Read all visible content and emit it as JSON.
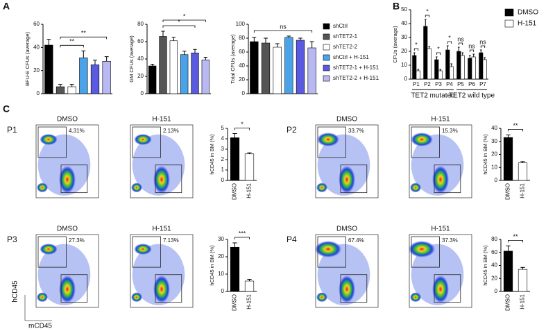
{
  "panels": [
    "A",
    "B",
    "C"
  ],
  "legend_a": [
    {
      "name": "shCtrl",
      "color": "#000000"
    },
    {
      "name": "shTET2-1",
      "color": "#555555"
    },
    {
      "name": "shTET2-2",
      "color": "#ffffff"
    },
    {
      "name": "shCtrl + H-151",
      "color": "#4aa3e8"
    },
    {
      "name": "shTET2-1 + H-151",
      "color": "#5a5ae0"
    },
    {
      "name": "shTET2-2 + H-151",
      "color": "#b8b8f2"
    }
  ],
  "chart_data": [
    {
      "type": "bar",
      "ylabel": "BFU-E CFUs (average)",
      "values": [
        42,
        6,
        6,
        31,
        25,
        28
      ],
      "errors": [
        5,
        2,
        2,
        6,
        4,
        4
      ],
      "colors": [
        "#000000",
        "#555555",
        "#ffffff",
        "#4aa3e8",
        "#5a5ae0",
        "#b8b8f2"
      ],
      "ylim": [
        0,
        60
      ],
      "yticks": [
        0,
        20,
        40,
        60
      ],
      "annotations": [
        {
          "text": "**",
          "between": [
            1,
            3
          ]
        },
        {
          "text": "**",
          "between": [
            1,
            5
          ]
        }
      ]
    },
    {
      "type": "bar",
      "ylabel": "GM CFUs (average)",
      "values": [
        32,
        66,
        61,
        45,
        47,
        39
      ],
      "errors": [
        2,
        6,
        4,
        4,
        4,
        3
      ],
      "colors": [
        "#000000",
        "#555555",
        "#ffffff",
        "#4aa3e8",
        "#5a5ae0",
        "#b8b8f2"
      ],
      "ylim": [
        0,
        80
      ],
      "yticks": [
        0,
        20,
        40,
        60,
        80
      ],
      "annotations": [
        {
          "text": "*",
          "between": [
            1,
            4
          ]
        },
        {
          "text": "*",
          "between": [
            1,
            5
          ]
        }
      ]
    },
    {
      "type": "bar",
      "ylabel": "Total CFUs (average)",
      "values": [
        75,
        73,
        67,
        81,
        77,
        66
      ],
      "errors": [
        6,
        7,
        5,
        2,
        3,
        9
      ],
      "colors": [
        "#000000",
        "#555555",
        "#ffffff",
        "#4aa3e8",
        "#5a5ae0",
        "#b8b8f2"
      ],
      "ylim": [
        0,
        100
      ],
      "yticks": [
        0,
        20,
        40,
        60,
        80,
        100
      ],
      "annotations": [
        {
          "text": "ns",
          "between": [
            0,
            5
          ]
        }
      ]
    },
    {
      "type": "grouped_bar",
      "ylabel": "CFUs (average)",
      "categories": [
        "P1",
        "P2",
        "P3",
        "P4",
        "P5",
        "P6",
        "P7"
      ],
      "series": [
        {
          "name": "DMSO",
          "color": "#000000",
          "values": [
            17,
            38,
            14,
            21,
            20,
            15,
            19
          ],
          "errors": [
            2,
            5,
            2,
            3,
            3,
            2,
            2
          ]
        },
        {
          "name": "H-151",
          "color": "#ffffff",
          "values": [
            6,
            22,
            6,
            9,
            17,
            16,
            14
          ],
          "errors": [
            1,
            1.5,
            1,
            2,
            2,
            2,
            1.5
          ]
        }
      ],
      "ylim": [
        0,
        50
      ],
      "yticks": [
        0,
        10,
        20,
        30,
        40,
        50
      ],
      "annotations": [
        "*",
        "*",
        "*",
        "*",
        "ns",
        "ns",
        "ns"
      ],
      "group_labels": [
        "TET2 mutated",
        "TET2 wild type"
      ]
    },
    {
      "type": "bar",
      "ylabel": "hCD45 in BM (%)",
      "categories": [
        "DMSO",
        "H-151"
      ],
      "values": [
        4.1,
        2.55
      ],
      "errors": [
        0.4,
        0.1
      ],
      "colors": [
        "#000000",
        "#ffffff"
      ],
      "ylim": [
        0,
        5
      ],
      "yticks": [
        0,
        1,
        2,
        3,
        4,
        5
      ],
      "annotations": [
        {
          "text": "*",
          "between": [
            0,
            1
          ]
        }
      ]
    },
    {
      "type": "bar",
      "ylabel": "hCD45 in BM (%)",
      "categories": [
        "DMSO",
        "H-151"
      ],
      "values": [
        33,
        13.5
      ],
      "errors": [
        2,
        1
      ],
      "colors": [
        "#000000",
        "#ffffff"
      ],
      "ylim": [
        0,
        40
      ],
      "yticks": [
        0,
        10,
        20,
        30,
        40
      ],
      "annotations": [
        {
          "text": "**",
          "between": [
            0,
            1
          ]
        }
      ]
    },
    {
      "type": "bar",
      "ylabel": "hCD45 in BM (%)",
      "categories": [
        "DMSO",
        "H-151"
      ],
      "values": [
        25.5,
        6
      ],
      "errors": [
        2.5,
        1
      ],
      "colors": [
        "#000000",
        "#ffffff"
      ],
      "ylim": [
        0,
        30
      ],
      "yticks": [
        0,
        10,
        20,
        30
      ],
      "annotations": [
        {
          "text": "***",
          "between": [
            0,
            1
          ]
        }
      ]
    },
    {
      "type": "bar",
      "ylabel": "hCD45 in BM (%)",
      "categories": [
        "DMSO",
        "H-151"
      ],
      "values": [
        62,
        34
      ],
      "errors": [
        8,
        3
      ],
      "colors": [
        "#000000",
        "#ffffff"
      ],
      "ylim": [
        0,
        80
      ],
      "yticks": [
        0,
        20,
        40,
        60,
        80
      ],
      "annotations": [
        {
          "text": "**",
          "between": [
            0,
            1
          ]
        }
      ]
    }
  ],
  "flow": {
    "y_axis": "hCD45",
    "x_axis": "mCD45",
    "rows": [
      {
        "patient": "P1",
        "plots": [
          {
            "condition": "DMSO",
            "percent": "4.31%"
          },
          {
            "condition": "H-151",
            "percent": "2.13%"
          }
        ]
      },
      {
        "patient": "P2",
        "plots": [
          {
            "condition": "DMSO",
            "percent": "33.7%"
          },
          {
            "condition": "H-151",
            "percent": "15.3%"
          }
        ]
      },
      {
        "patient": "P3",
        "plots": [
          {
            "condition": "DMSO",
            "percent": "27.3%"
          },
          {
            "condition": "H-151",
            "percent": "7.13%"
          }
        ]
      },
      {
        "patient": "P4",
        "plots": [
          {
            "condition": "DMSO",
            "percent": "67.4%"
          },
          {
            "condition": "H-151",
            "percent": "37.3%"
          }
        ]
      }
    ]
  }
}
